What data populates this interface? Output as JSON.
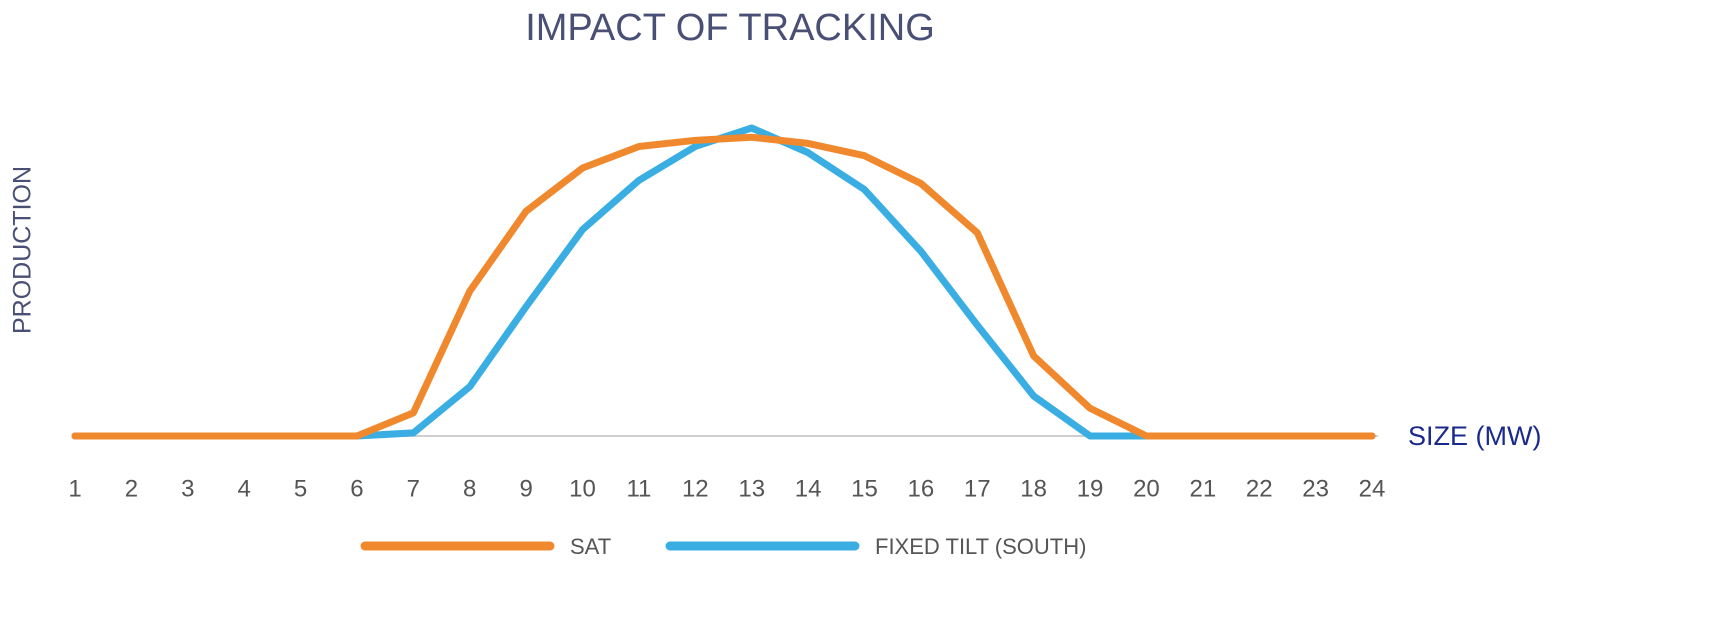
{
  "chart_data": {
    "type": "line",
    "title": "IMPACT OF TRACKING",
    "x_label": "SIZE (MW)",
    "y_label": "PRODUCTION",
    "x": [
      1,
      2,
      3,
      4,
      5,
      6,
      7,
      8,
      9,
      10,
      11,
      12,
      13,
      14,
      15,
      16,
      17,
      18,
      19,
      20,
      21,
      22,
      23,
      24
    ],
    "xlim": [
      1,
      24
    ],
    "xticks": [
      1,
      2,
      3,
      4,
      5,
      6,
      7,
      8,
      9,
      10,
      11,
      12,
      13,
      14,
      15,
      16,
      17,
      18,
      19,
      20,
      21,
      22,
      23,
      24
    ],
    "ylim": [
      0,
      100
    ],
    "series": [
      {
        "name": "FIXED TILT (SOUTH)",
        "color": "#3aaee2",
        "values": [
          0,
          0,
          0,
          0,
          0,
          0,
          1,
          16,
          42,
          67,
          83,
          94,
          100,
          92,
          80,
          60,
          36,
          13,
          0,
          0,
          0,
          0,
          0,
          0
        ]
      },
      {
        "name": "SAT",
        "color": "#f0892e",
        "values": [
          0,
          0,
          0,
          0,
          0,
          0,
          7.5,
          47,
          73,
          87,
          94,
          96,
          97,
          95,
          91,
          82,
          66,
          26,
          9,
          0,
          0,
          0,
          0,
          0
        ]
      }
    ],
    "legend_order": [
      "SAT",
      "FIXED TILT (SOUTH)"
    ]
  }
}
